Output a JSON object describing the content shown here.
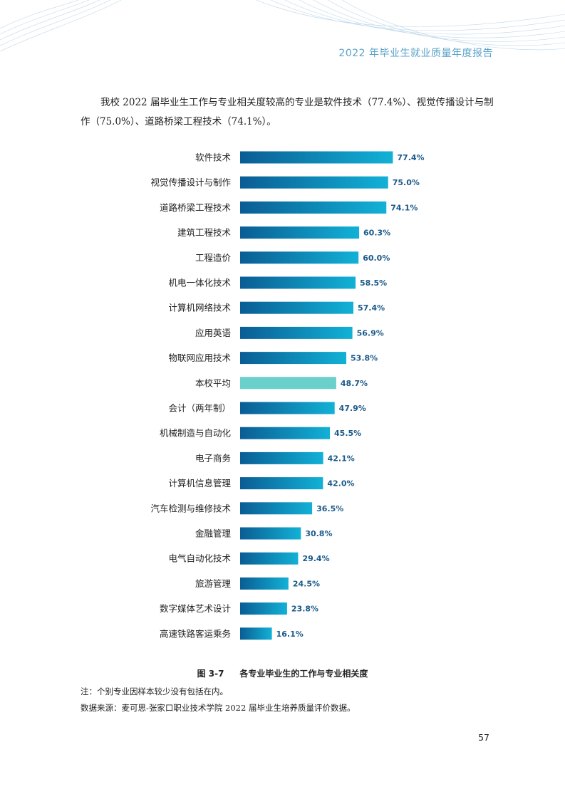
{
  "header": {
    "title": "2022 年毕业生就业质量年度报告"
  },
  "intro": {
    "text": "我校 2022 届毕业生工作与专业相关度较高的专业是软件技术（77.4%）、视觉传播设计与制作（75.0%）、道路桥梁工程技术（74.1%）。"
  },
  "chart_data": {
    "type": "bar",
    "orientation": "horizontal",
    "categories": [
      "软件技术",
      "视觉传播设计与制作",
      "道路桥梁工程技术",
      "建筑工程技术",
      "工程造价",
      "机电一体化技术",
      "计算机网络技术",
      "应用英语",
      "物联网应用技术",
      "本校平均",
      "会计（两年制）",
      "机械制造与自动化",
      "电子商务",
      "计算机信息管理",
      "汽车检测与维修技术",
      "金融管理",
      "电气自动化技术",
      "旅游管理",
      "数字媒体艺术设计",
      "高速铁路客运乘务"
    ],
    "values": [
      77.4,
      75.0,
      74.1,
      60.3,
      60.0,
      58.5,
      57.4,
      56.9,
      53.8,
      48.7,
      47.9,
      45.5,
      42.1,
      42.0,
      36.5,
      30.8,
      29.4,
      24.5,
      23.8,
      16.1
    ],
    "value_labels": [
      "77.4%",
      "75.0%",
      "74.1%",
      "60.3%",
      "60.0%",
      "58.5%",
      "57.4%",
      "56.9%",
      "53.8%",
      "48.7%",
      "47.9%",
      "45.5%",
      "42.1%",
      "42.0%",
      "36.5%",
      "30.8%",
      "29.4%",
      "24.5%",
      "23.8%",
      "16.1%"
    ],
    "highlight_category": "本校平均",
    "xlim": [
      0,
      100
    ],
    "grid": false,
    "colors": {
      "bar_start": "#0a5d94",
      "bar_end": "#12b1d6",
      "highlight": "#6bcfcb",
      "value_text": "#1b5a8a"
    }
  },
  "caption": {
    "figure_no": "图 3-7",
    "title": "各专业毕业生的工作与专业相关度"
  },
  "notes": {
    "note1": "注：个别专业因样本较少没有包括在内。",
    "note2": "数据来源：麦可思-张家口职业技术学院 2022 届毕业生培养质量评价数据。"
  },
  "page_number": "57"
}
